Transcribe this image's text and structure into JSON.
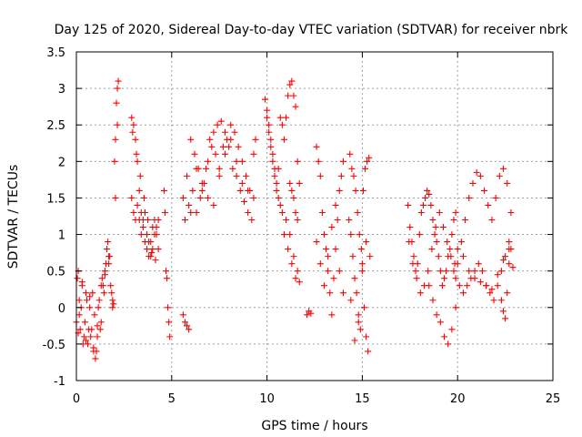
{
  "chart_data": {
    "type": "scatter",
    "title": "Day 125 of 2020, Sidereal Day-to-day VTEC variation (SDTVAR) for receiver nbrk",
    "xlabel": "GPS time / hours",
    "ylabel": "SDTVAR / TECUs",
    "xlim": [
      0,
      25
    ],
    "ylim": [
      -1,
      3.5
    ],
    "xticks": [
      0,
      5,
      10,
      15,
      20,
      25
    ],
    "yticks": [
      -1,
      -0.5,
      0,
      0.5,
      1,
      1.5,
      2,
      2.5,
      3,
      3.5
    ],
    "grid": true,
    "marker": "+",
    "color": "#ff0000",
    "series": [
      {
        "name": "SDTVAR",
        "x": [
          0.0,
          0.1,
          0.15,
          0.2,
          0.3,
          0.4,
          0.5,
          0.6,
          0.7,
          0.8,
          0.9,
          1.0,
          1.1,
          1.2,
          1.3,
          1.4,
          1.5,
          1.6,
          1.7,
          1.8,
          1.9,
          2.0,
          2.05,
          2.1,
          2.15,
          2.2,
          0.05,
          0.15,
          0.25,
          0.35,
          0.45,
          0.55,
          0.65,
          0.75,
          0.85,
          0.95,
          1.05,
          1.15,
          1.25,
          1.35,
          1.45,
          1.55,
          1.65,
          1.75,
          1.85,
          1.95,
          2.05,
          2.15,
          0.1,
          0.3,
          0.5,
          0.7,
          0.9,
          1.1,
          1.3,
          1.5,
          1.7,
          1.9,
          2.9,
          3.0,
          3.1,
          3.2,
          3.3,
          3.4,
          3.5,
          3.6,
          3.7,
          3.8,
          3.9,
          4.0,
          4.1,
          4.2,
          4.3,
          2.9,
          3.0,
          3.1,
          3.2,
          3.3,
          3.4,
          3.5,
          3.6,
          3.7,
          3.8,
          3.9,
          4.0,
          4.1,
          4.2,
          4.3,
          2.95,
          3.15,
          3.35,
          3.55,
          3.75,
          3.95,
          4.15,
          4.6,
          4.65,
          4.7,
          4.75,
          4.8,
          4.85,
          4.9,
          5.6,
          5.7,
          5.8,
          5.9,
          5.6,
          5.8,
          6.0,
          6.2,
          6.4,
          6.6,
          6.8,
          7.0,
          7.2,
          7.4,
          7.6,
          7.8,
          8.0,
          8.2,
          8.4,
          8.6,
          8.8,
          9.0,
          9.2,
          9.4,
          5.7,
          5.9,
          6.1,
          6.3,
          6.5,
          6.7,
          6.9,
          7.1,
          7.3,
          7.5,
          7.7,
          7.9,
          8.1,
          8.3,
          8.5,
          8.7,
          8.9,
          9.1,
          9.3,
          6.0,
          6.3,
          6.6,
          6.9,
          7.2,
          7.5,
          7.8,
          8.1,
          8.4,
          8.7,
          9.0,
          9.3,
          9.9,
          10.0,
          10.1,
          10.2,
          10.3,
          10.4,
          10.5,
          10.6,
          10.7,
          10.8,
          10.9,
          11.0,
          11.1,
          11.2,
          11.3,
          11.4,
          11.5,
          11.6,
          11.7,
          10.0,
          10.2,
          10.4,
          10.6,
          10.8,
          11.0,
          11.2,
          11.4,
          11.6,
          10.1,
          10.3,
          10.5,
          10.7,
          10.9,
          11.1,
          11.3,
          11.5,
          11.7,
          11.2,
          11.3,
          11.4,
          11.5,
          11.6,
          12.1,
          12.2,
          12.3,
          12.6,
          12.7,
          12.8,
          12.9,
          13.0,
          13.1,
          13.2,
          13.3,
          13.4,
          13.5,
          13.6,
          13.7,
          13.8,
          13.9,
          14.0,
          12.6,
          12.8,
          13.0,
          13.2,
          13.4,
          13.6,
          13.8,
          14.0,
          14.3,
          14.4,
          14.5,
          14.6,
          14.7,
          14.8,
          14.9,
          15.0,
          15.1,
          15.2,
          15.3,
          14.35,
          14.45,
          14.55,
          14.65,
          14.75,
          14.85,
          14.95,
          15.05,
          15.15,
          15.25,
          15.35,
          14.4,
          14.6,
          14.8,
          15.0,
          15.2,
          15.4,
          17.4,
          17.5,
          17.6,
          17.7,
          17.8,
          17.9,
          18.0,
          18.1,
          18.2,
          18.3,
          18.4,
          18.5,
          18.6,
          18.7,
          18.8,
          18.9,
          19.0,
          19.1,
          19.2,
          19.3,
          19.4,
          19.5,
          19.6,
          19.7,
          19.8,
          19.9,
          17.45,
          17.65,
          17.85,
          18.05,
          18.25,
          18.45,
          18.65,
          18.85,
          19.05,
          19.25,
          19.45,
          19.65,
          19.85,
          18.5,
          18.7,
          18.9,
          19.1,
          19.3,
          19.5,
          19.7,
          19.9,
          19.8,
          20.0,
          20.2,
          20.4,
          20.6,
          20.8,
          21.0,
          21.2,
          21.4,
          21.6,
          21.8,
          22.0,
          22.2,
          22.4,
          22.6,
          22.8,
          19.9,
          20.1,
          20.3,
          20.5,
          20.7,
          20.9,
          21.1,
          21.3,
          21.5,
          21.7,
          21.9,
          22.1,
          22.3,
          22.5,
          22.7,
          20.0,
          20.3,
          20.6,
          20.9,
          21.2,
          21.5,
          21.8,
          22.1,
          22.4,
          22.7,
          22.3,
          22.4,
          22.5,
          22.6,
          22.7,
          22.8,
          22.9
        ],
        "y": [
          -0.2,
          0.5,
          0.1,
          -0.3,
          0.3,
          -0.4,
          0.2,
          -0.5,
          0.0,
          -0.3,
          -0.6,
          -0.7,
          -0.4,
          0.1,
          -0.2,
          0.3,
          0.5,
          0.8,
          0.6,
          0.3,
          0.0,
          2.0,
          2.3,
          2.8,
          3.0,
          3.1,
          0.4,
          -0.1,
          0.0,
          -0.5,
          -0.2,
          0.1,
          -0.3,
          -0.4,
          0.2,
          -0.1,
          -0.6,
          0.0,
          -0.3,
          0.4,
          0.2,
          0.6,
          0.9,
          0.7,
          0.2,
          0.05,
          1.5,
          2.5,
          -0.35,
          0.35,
          -0.45,
          0.15,
          -0.55,
          -0.25,
          0.3,
          0.45,
          0.7,
          0.1,
          2.6,
          2.5,
          2.3,
          2.0,
          1.6,
          1.3,
          1.1,
          0.9,
          0.8,
          0.7,
          0.9,
          1.1,
          1.2,
          1.0,
          0.8,
          1.5,
          1.3,
          1.2,
          1.4,
          1.2,
          1.0,
          1.2,
          1.3,
          1.0,
          0.9,
          0.7,
          0.8,
          1.0,
          1.1,
          1.2,
          2.4,
          2.1,
          1.8,
          1.5,
          1.2,
          0.75,
          0.65,
          1.6,
          1.3,
          0.5,
          0.4,
          0.0,
          -0.2,
          -0.4,
          -0.1,
          -0.2,
          -0.25,
          -0.3,
          1.5,
          1.8,
          2.3,
          2.1,
          1.9,
          1.6,
          1.9,
          2.3,
          2.4,
          2.5,
          2.55,
          2.4,
          2.2,
          1.9,
          1.8,
          1.6,
          1.45,
          1.3,
          1.2,
          2.3,
          1.2,
          1.4,
          1.6,
          1.3,
          1.5,
          1.7,
          2.0,
          2.2,
          2.1,
          1.9,
          2.2,
          2.3,
          2.5,
          2.4,
          2.2,
          2.0,
          1.8,
          1.6,
          1.5,
          1.3,
          1.9,
          1.7,
          1.5,
          1.4,
          1.8,
          2.1,
          2.3,
          2.0,
          1.7,
          1.6,
          2.1,
          2.85,
          2.6,
          2.4,
          2.2,
          2.0,
          1.8,
          1.6,
          1.9,
          2.6,
          2.5,
          2.3,
          2.6,
          2.9,
          3.05,
          3.1,
          2.9,
          2.75,
          2.0,
          1.7,
          2.7,
          2.3,
          1.9,
          1.5,
          1.3,
          1.2,
          1.0,
          0.7,
          0.5,
          2.5,
          2.1,
          1.7,
          1.4,
          1.0,
          0.8,
          0.6,
          0.4,
          0.35,
          1.7,
          1.6,
          1.5,
          1.3,
          1.2,
          -0.1,
          -0.05,
          -0.08,
          2.2,
          2.0,
          1.8,
          1.3,
          1.0,
          0.8,
          0.5,
          0.2,
          -0.1,
          0.4,
          0.8,
          1.2,
          1.6,
          1.8,
          2.0,
          0.9,
          0.6,
          0.3,
          0.7,
          1.1,
          1.4,
          0.5,
          0.2,
          1.2,
          1.0,
          0.7,
          0.4,
          0.2,
          -0.1,
          -0.3,
          0.5,
          0.0,
          -0.4,
          -0.6,
          2.1,
          1.9,
          1.8,
          1.6,
          1.3,
          1.0,
          0.8,
          1.6,
          1.9,
          2.0,
          2.05,
          0.1,
          -0.45,
          -0.2,
          0.6,
          0.9,
          0.7,
          1.4,
          1.1,
          0.9,
          0.7,
          0.5,
          0.6,
          1.0,
          1.3,
          1.4,
          1.5,
          1.6,
          1.55,
          1.4,
          1.2,
          1.0,
          0.9,
          0.7,
          0.5,
          0.3,
          0.4,
          0.5,
          0.7,
          0.8,
          1.0,
          1.2,
          1.3,
          0.9,
          0.6,
          0.4,
          0.2,
          0.3,
          0.5,
          0.8,
          1.1,
          1.3,
          1.1,
          0.9,
          0.7,
          0.6,
          0.3,
          0.1,
          -0.1,
          -0.2,
          -0.4,
          -0.5,
          -0.3,
          0.0,
          0.5,
          0.6,
          0.9,
          1.2,
          1.5,
          1.7,
          1.85,
          1.8,
          1.6,
          1.4,
          1.2,
          1.5,
          1.8,
          1.9,
          1.7,
          1.3,
          0.4,
          0.3,
          0.2,
          0.3,
          0.4,
          0.5,
          0.6,
          0.5,
          0.3,
          0.2,
          0.1,
          0.3,
          0.5,
          0.7,
          0.8,
          0.8,
          0.7,
          0.5,
          0.4,
          0.35,
          0.3,
          0.25,
          0.45,
          0.65,
          0.9,
          0.1,
          -0.05,
          -0.15,
          0.2,
          0.6,
          0.8,
          0.55
        ]
      }
    ]
  }
}
